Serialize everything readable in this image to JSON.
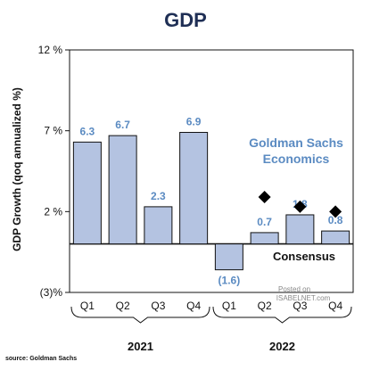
{
  "chart_data": {
    "type": "bar",
    "title": "GDP",
    "ylabel": "GDP Growth (qoq annualized %)",
    "ylim": [
      -3,
      12
    ],
    "yticks": [
      {
        "value": 12,
        "label": "12 %"
      },
      {
        "value": 7,
        "label": "7 %"
      },
      {
        "value": 2,
        "label": "2 %"
      },
      {
        "value": -3,
        "label": "(3)%"
      }
    ],
    "categories": [
      "Q1",
      "Q2",
      "Q3",
      "Q4",
      "Q1",
      "Q2",
      "Q3",
      "Q4"
    ],
    "groups": [
      {
        "label": "2021",
        "categories": [
          0,
          1,
          2,
          3
        ]
      },
      {
        "label": "2022",
        "categories": [
          4,
          5,
          6,
          7
        ]
      }
    ],
    "series": [
      {
        "values": [
          6.3,
          6.7,
          2.3,
          6.9,
          -1.6,
          0.7,
          1.8,
          0.8
        ],
        "value_labels": [
          "6.3",
          "6.7",
          "2.3",
          "6.9",
          "(1.6)",
          "0.7",
          "1.8",
          "0.8"
        ],
        "color": "#b4c3e1"
      },
      {
        "name": "Consensus",
        "marker": "diamond",
        "values": [
          null,
          null,
          null,
          null,
          null,
          2.9,
          2.3,
          2.0
        ]
      }
    ],
    "annotations": {
      "brand_line1": "Goldman Sachs",
      "brand_line2": "Economics",
      "consensus_label": "Consensus",
      "posted_on": "Posted on",
      "watermark": "ISABELNET.com"
    },
    "source": "source: Goldman Sachs",
    "colors": {
      "bar_fill": "#b4c3e1",
      "bar_stroke": "#111111",
      "value_label": "#5b8bc2",
      "brand_text": "#5b8bc2",
      "title": "#1f2f55"
    },
    "grid": false
  }
}
